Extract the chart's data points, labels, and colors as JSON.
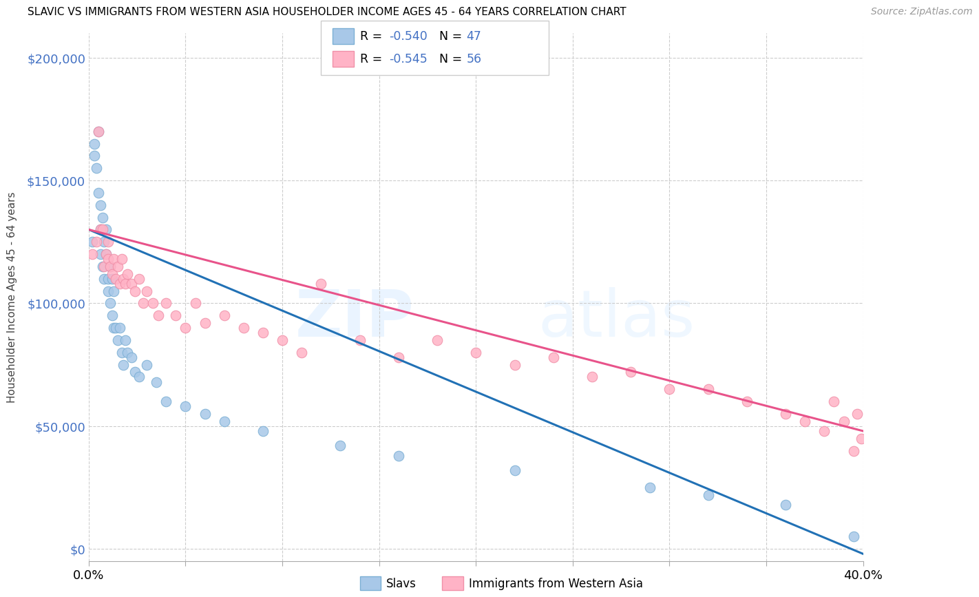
{
  "title": "SLAVIC VS IMMIGRANTS FROM WESTERN ASIA HOUSEHOLDER INCOME AGES 45 - 64 YEARS CORRELATION CHART",
  "source": "Source: ZipAtlas.com",
  "ylabel": "Householder Income Ages 45 - 64 years",
  "legend_label1": "Slavs",
  "legend_label2": "Immigrants from Western Asia",
  "blue_scatter": "#a8c8e8",
  "blue_edge": "#7bafd4",
  "pink_scatter": "#ffb3c6",
  "pink_edge": "#f090a8",
  "blue_line": "#2171b5",
  "pink_line": "#e8538a",
  "axis_color": "#4472C4",
  "grid_color": "#cccccc",
  "ytick_labels": [
    "$0",
    "$50,000",
    "$100,000",
    "$150,000",
    "$200,000"
  ],
  "ytick_values": [
    0,
    50000,
    100000,
    150000,
    200000
  ],
  "slavs_x": [
    0.002,
    0.003,
    0.003,
    0.004,
    0.005,
    0.005,
    0.006,
    0.006,
    0.006,
    0.007,
    0.007,
    0.008,
    0.008,
    0.009,
    0.009,
    0.01,
    0.01,
    0.011,
    0.011,
    0.012,
    0.012,
    0.013,
    0.013,
    0.014,
    0.015,
    0.016,
    0.017,
    0.018,
    0.019,
    0.02,
    0.022,
    0.024,
    0.026,
    0.03,
    0.035,
    0.04,
    0.05,
    0.06,
    0.07,
    0.09,
    0.13,
    0.16,
    0.22,
    0.29,
    0.32,
    0.36,
    0.395
  ],
  "slavs_y": [
    125000,
    165000,
    160000,
    155000,
    145000,
    170000,
    140000,
    130000,
    120000,
    135000,
    115000,
    125000,
    110000,
    120000,
    130000,
    110000,
    105000,
    115000,
    100000,
    110000,
    95000,
    105000,
    90000,
    90000,
    85000,
    90000,
    80000,
    75000,
    85000,
    80000,
    78000,
    72000,
    70000,
    75000,
    68000,
    60000,
    58000,
    55000,
    52000,
    48000,
    42000,
    38000,
    32000,
    25000,
    22000,
    18000,
    5000
  ],
  "western_x": [
    0.002,
    0.004,
    0.005,
    0.006,
    0.007,
    0.008,
    0.009,
    0.01,
    0.01,
    0.011,
    0.012,
    0.013,
    0.014,
    0.015,
    0.016,
    0.017,
    0.018,
    0.019,
    0.02,
    0.022,
    0.024,
    0.026,
    0.028,
    0.03,
    0.033,
    0.036,
    0.04,
    0.045,
    0.05,
    0.055,
    0.06,
    0.07,
    0.08,
    0.09,
    0.1,
    0.11,
    0.12,
    0.14,
    0.16,
    0.18,
    0.2,
    0.22,
    0.24,
    0.26,
    0.28,
    0.3,
    0.32,
    0.34,
    0.36,
    0.37,
    0.38,
    0.385,
    0.39,
    0.395,
    0.397,
    0.399
  ],
  "western_y": [
    120000,
    125000,
    170000,
    130000,
    130000,
    115000,
    120000,
    118000,
    125000,
    115000,
    112000,
    118000,
    110000,
    115000,
    108000,
    118000,
    110000,
    108000,
    112000,
    108000,
    105000,
    110000,
    100000,
    105000,
    100000,
    95000,
    100000,
    95000,
    90000,
    100000,
    92000,
    95000,
    90000,
    88000,
    85000,
    80000,
    108000,
    85000,
    78000,
    85000,
    80000,
    75000,
    78000,
    70000,
    72000,
    65000,
    65000,
    60000,
    55000,
    52000,
    48000,
    60000,
    52000,
    40000,
    55000,
    45000
  ],
  "xmin": 0.0,
  "xmax": 0.4,
  "ymin": -5000,
  "ymax": 210000,
  "blue_intercept": 130000,
  "blue_slope": -330000,
  "pink_intercept": 130000,
  "pink_slope": -205000
}
